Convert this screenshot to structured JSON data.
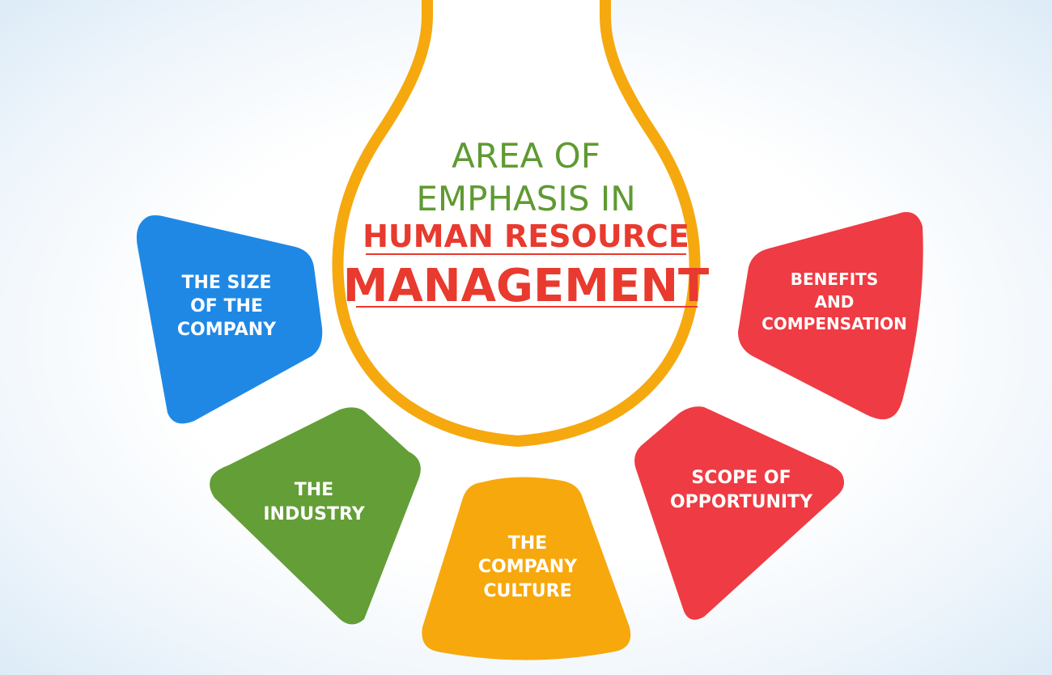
{
  "title": {
    "line1": "AREA OF",
    "line2": "EMPHASIS IN",
    "line3": "HUMAN RESOURCE",
    "line4": "MANAGEMENT"
  },
  "colors": {
    "bulb_outline": "#f5a90f",
    "title_green": "#5f9a32",
    "title_red": "#e83a2e",
    "blue": "#1f88e5",
    "green": "#639e37",
    "orange": "#f7a80c",
    "red": "#ef3b43"
  },
  "items": [
    {
      "id": "size",
      "color": "blue",
      "lines": [
        "THE SIZE",
        "OF THE",
        "COMPANY"
      ]
    },
    {
      "id": "industry",
      "color": "green",
      "lines": [
        "THE",
        "INDUSTRY"
      ]
    },
    {
      "id": "culture",
      "color": "orange",
      "lines": [
        "THE",
        "COMPANY",
        "CULTURE"
      ]
    },
    {
      "id": "scope",
      "color": "red",
      "lines": [
        "SCOPE OF",
        "OPPORTUNITY"
      ]
    },
    {
      "id": "benefits",
      "color": "red",
      "lines": [
        "BENEFITS",
        "AND",
        "COMPENSATION"
      ]
    }
  ]
}
